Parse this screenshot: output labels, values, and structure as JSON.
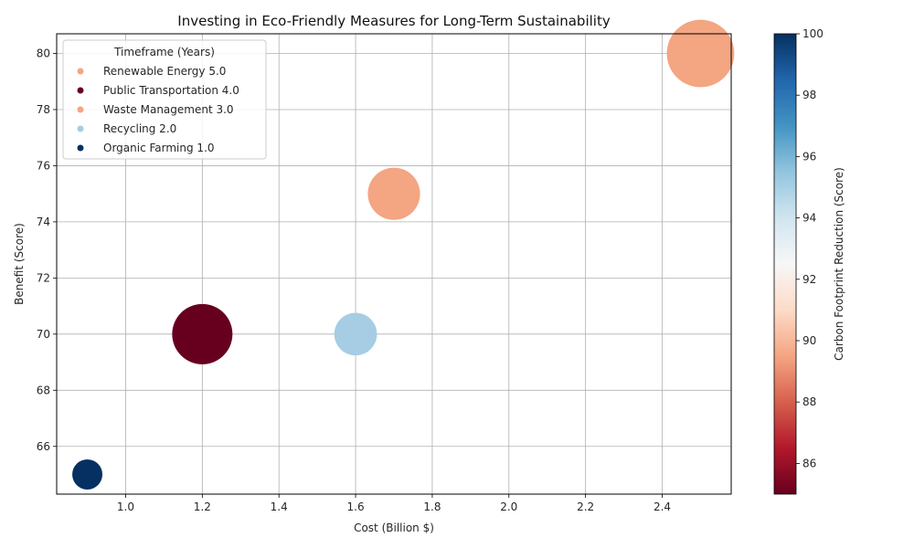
{
  "chart_data": {
    "type": "scatter",
    "title": "Investing in Eco-Friendly Measures for Long-Term Sustainability",
    "xlabel": "Cost (Billion $)",
    "ylabel": "Benefit (Score)",
    "xlim": [
      0.82,
      2.58
    ],
    "ylim": [
      64.3,
      80.7
    ],
    "x_ticks": [
      "1.0",
      "1.2",
      "1.4",
      "1.6",
      "1.8",
      "2.0",
      "2.2",
      "2.4"
    ],
    "y_ticks": [
      "66",
      "68",
      "70",
      "72",
      "74",
      "76",
      "78",
      "80"
    ],
    "grid": true,
    "legend": {
      "title": "Timeframe (Years)",
      "placement": "top-left",
      "entries": [
        {
          "label": "Renewable Energy 5.0",
          "color": "#f4a582"
        },
        {
          "label": "Public Transportation 4.0",
          "color": "#67001f"
        },
        {
          "label": "Waste Management 3.0",
          "color": "#f4a582"
        },
        {
          "label": "Recycling 2.0",
          "color": "#a6cde3"
        },
        {
          "label": "Organic Farming 1.0",
          "color": "#053061"
        }
      ]
    },
    "colorbar": {
      "label": "Carbon Footprint Reduction (Score)",
      "range": [
        85,
        100
      ],
      "ticks": [
        "86",
        "88",
        "90",
        "92",
        "94",
        "96",
        "98",
        "100"
      ],
      "colormap": "RdBu"
    },
    "points": [
      {
        "name": "Renewable Energy",
        "x": 2.5,
        "y": 80,
        "color_value": 90,
        "timeframe": 5.0,
        "color": "#f4a582"
      },
      {
        "name": "Public Transportation",
        "x": 1.2,
        "y": 70,
        "color_value": 85,
        "timeframe": 4.0,
        "color": "#67001f"
      },
      {
        "name": "Waste Management",
        "x": 1.7,
        "y": 75,
        "color_value": 90,
        "timeframe": 3.0,
        "color": "#f4a582"
      },
      {
        "name": "Recycling",
        "x": 1.6,
        "y": 70,
        "color_value": 95,
        "timeframe": 2.0,
        "color": "#a6cde3"
      },
      {
        "name": "Organic Farming",
        "x": 0.9,
        "y": 65,
        "color_value": 100,
        "timeframe": 1.0,
        "color": "#053061"
      }
    ]
  }
}
